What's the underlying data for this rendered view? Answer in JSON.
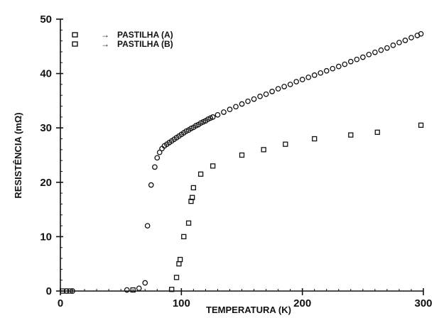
{
  "chart_data": {
    "type": "scatter",
    "xlabel": "TEMPERATURA (K)",
    "ylabel": "RESISTÊNCIA (mΩ)",
    "xlim": [
      0,
      300
    ],
    "ylim": [
      0,
      50
    ],
    "x_ticks": [
      0,
      100,
      200,
      300
    ],
    "y_ticks": [
      0,
      10,
      20,
      30,
      40,
      50
    ],
    "legend_position": "top-left",
    "grid": false,
    "series": [
      {
        "name": "PASTILHA (A)",
        "marker": "circle",
        "points": [
          [
            5,
            0
          ],
          [
            10,
            0
          ],
          [
            55,
            0.2
          ],
          [
            65,
            0.5
          ],
          [
            70,
            1.5
          ],
          [
            72,
            12
          ],
          [
            75,
            19.5
          ],
          [
            78,
            22.8
          ],
          [
            80,
            24.5
          ],
          [
            82,
            25.5
          ],
          [
            84,
            26.2
          ],
          [
            86,
            26.7
          ],
          [
            88,
            27
          ],
          [
            90,
            27.3
          ],
          [
            92,
            27.6
          ],
          [
            94,
            27.9
          ],
          [
            96,
            28.2
          ],
          [
            98,
            28.5
          ],
          [
            100,
            28.8
          ],
          [
            102,
            29.1
          ],
          [
            104,
            29.4
          ],
          [
            106,
            29.6
          ],
          [
            108,
            29.9
          ],
          [
            110,
            30.1
          ],
          [
            112,
            30.4
          ],
          [
            114,
            30.6
          ],
          [
            116,
            30.9
          ],
          [
            118,
            31.1
          ],
          [
            120,
            31.3
          ],
          [
            122,
            31.6
          ],
          [
            124,
            31.8
          ],
          [
            126,
            32
          ],
          [
            130,
            32.4
          ],
          [
            135,
            32.9
          ],
          [
            140,
            33.4
          ],
          [
            145,
            33.9
          ],
          [
            150,
            34.4
          ],
          [
            155,
            34.9
          ],
          [
            160,
            35.3
          ],
          [
            165,
            35.8
          ],
          [
            170,
            36.2
          ],
          [
            175,
            36.7
          ],
          [
            180,
            37.2
          ],
          [
            185,
            37.6
          ],
          [
            190,
            38
          ],
          [
            195,
            38.5
          ],
          [
            200,
            38.9
          ],
          [
            205,
            39.3
          ],
          [
            210,
            39.7
          ],
          [
            215,
            40.1
          ],
          [
            220,
            40.5
          ],
          [
            225,
            40.9
          ],
          [
            230,
            41.3
          ],
          [
            235,
            41.7
          ],
          [
            240,
            42.2
          ],
          [
            245,
            42.6
          ],
          [
            250,
            43
          ],
          [
            255,
            43.5
          ],
          [
            260,
            43.9
          ],
          [
            265,
            44.3
          ],
          [
            270,
            44.7
          ],
          [
            275,
            45.2
          ],
          [
            280,
            45.7
          ],
          [
            285,
            46.1
          ],
          [
            290,
            46.6
          ],
          [
            295,
            47
          ],
          [
            298,
            47.3
          ]
        ]
      },
      {
        "name": "PASTILHA (B)",
        "marker": "square",
        "points": [
          [
            2,
            0
          ],
          [
            8,
            0
          ],
          [
            60,
            0.2
          ],
          [
            92,
            0.3
          ],
          [
            96,
            2.5
          ],
          [
            98,
            5
          ],
          [
            99,
            5.8
          ],
          [
            102,
            10
          ],
          [
            106,
            12.5
          ],
          [
            108,
            16.5
          ],
          [
            109,
            17.2
          ],
          [
            110,
            19
          ],
          [
            116,
            21.5
          ],
          [
            126,
            23
          ],
          [
            150,
            25
          ],
          [
            168,
            26
          ],
          [
            186,
            27
          ],
          [
            210,
            28
          ],
          [
            240,
            28.7
          ],
          [
            262,
            29.2
          ],
          [
            298,
            30.5
          ]
        ]
      }
    ]
  }
}
